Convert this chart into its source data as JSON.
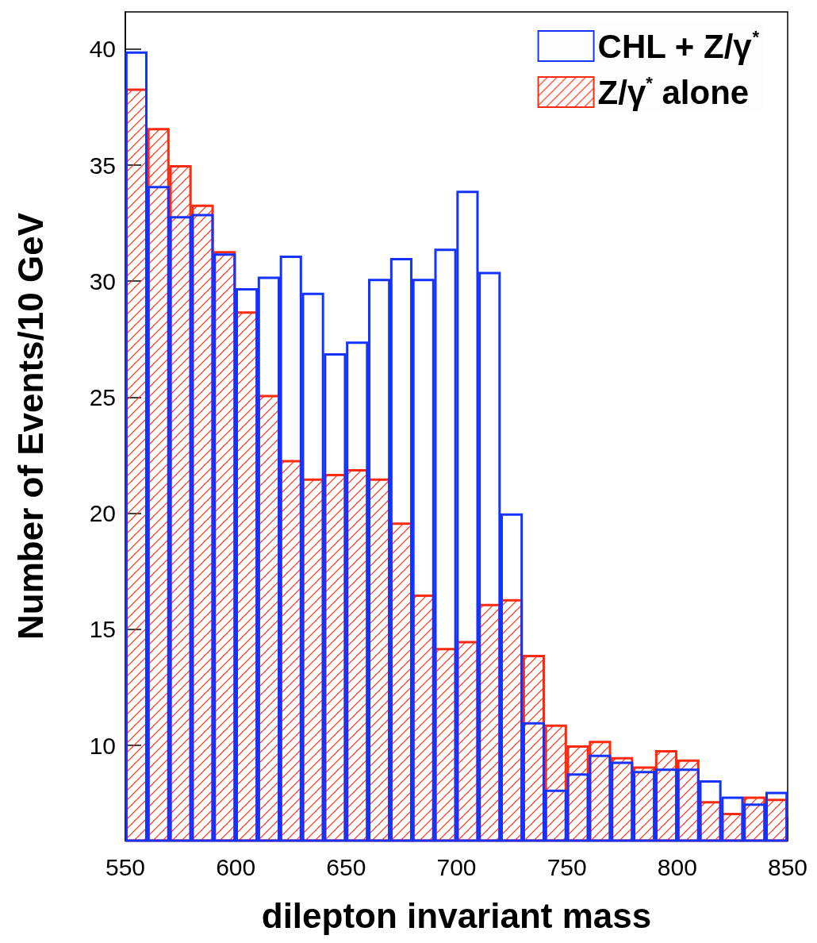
{
  "chart_data": {
    "type": "histogram",
    "xlabel": "dilepton invariant mass",
    "ylabel": "Number of Events/10 GeV",
    "bins": [
      550,
      560,
      570,
      580,
      590,
      600,
      610,
      620,
      630,
      640,
      650,
      660,
      670,
      680,
      690,
      700,
      710,
      720,
      730,
      740,
      750,
      760,
      770,
      780,
      790,
      800,
      810,
      820,
      830,
      840,
      850
    ],
    "series": [
      {
        "name": "CHL + Z/γ$^{*}$",
        "color": "#1433ff",
        "values": [
          39.9,
          34.1,
          32.8,
          32.9,
          31.2,
          29.7,
          30.2,
          31.1,
          29.5,
          26.9,
          27.4,
          30.1,
          31.0,
          30.1,
          31.4,
          33.9,
          30.4,
          20.0,
          11.0,
          8.1,
          8.8,
          9.6,
          9.3,
          8.9,
          9.0,
          9.0,
          8.5,
          7.8,
          7.5,
          8.0
        ]
      },
      {
        "name": "Z/γ$^{*}$ alone",
        "color": "#ff2a0d",
        "values": [
          38.3,
          36.6,
          35.0,
          33.3,
          31.3,
          28.7,
          25.1,
          22.3,
          21.5,
          21.7,
          21.9,
          21.5,
          19.6,
          16.5,
          14.2,
          14.5,
          16.1,
          16.3,
          13.9,
          10.9,
          10.0,
          10.2,
          9.5,
          9.1,
          9.8,
          9.4,
          7.6,
          7.1,
          7.8,
          7.7
        ]
      }
    ],
    "xlim": [
      550,
      850
    ],
    "xticks": [
      550,
      600,
      650,
      700,
      750,
      800,
      850
    ],
    "ylim": [
      5.9,
      41.6
    ],
    "yticks": [
      10,
      15,
      20,
      25,
      30,
      35,
      40
    ],
    "grid": false,
    "legend": "top right"
  }
}
